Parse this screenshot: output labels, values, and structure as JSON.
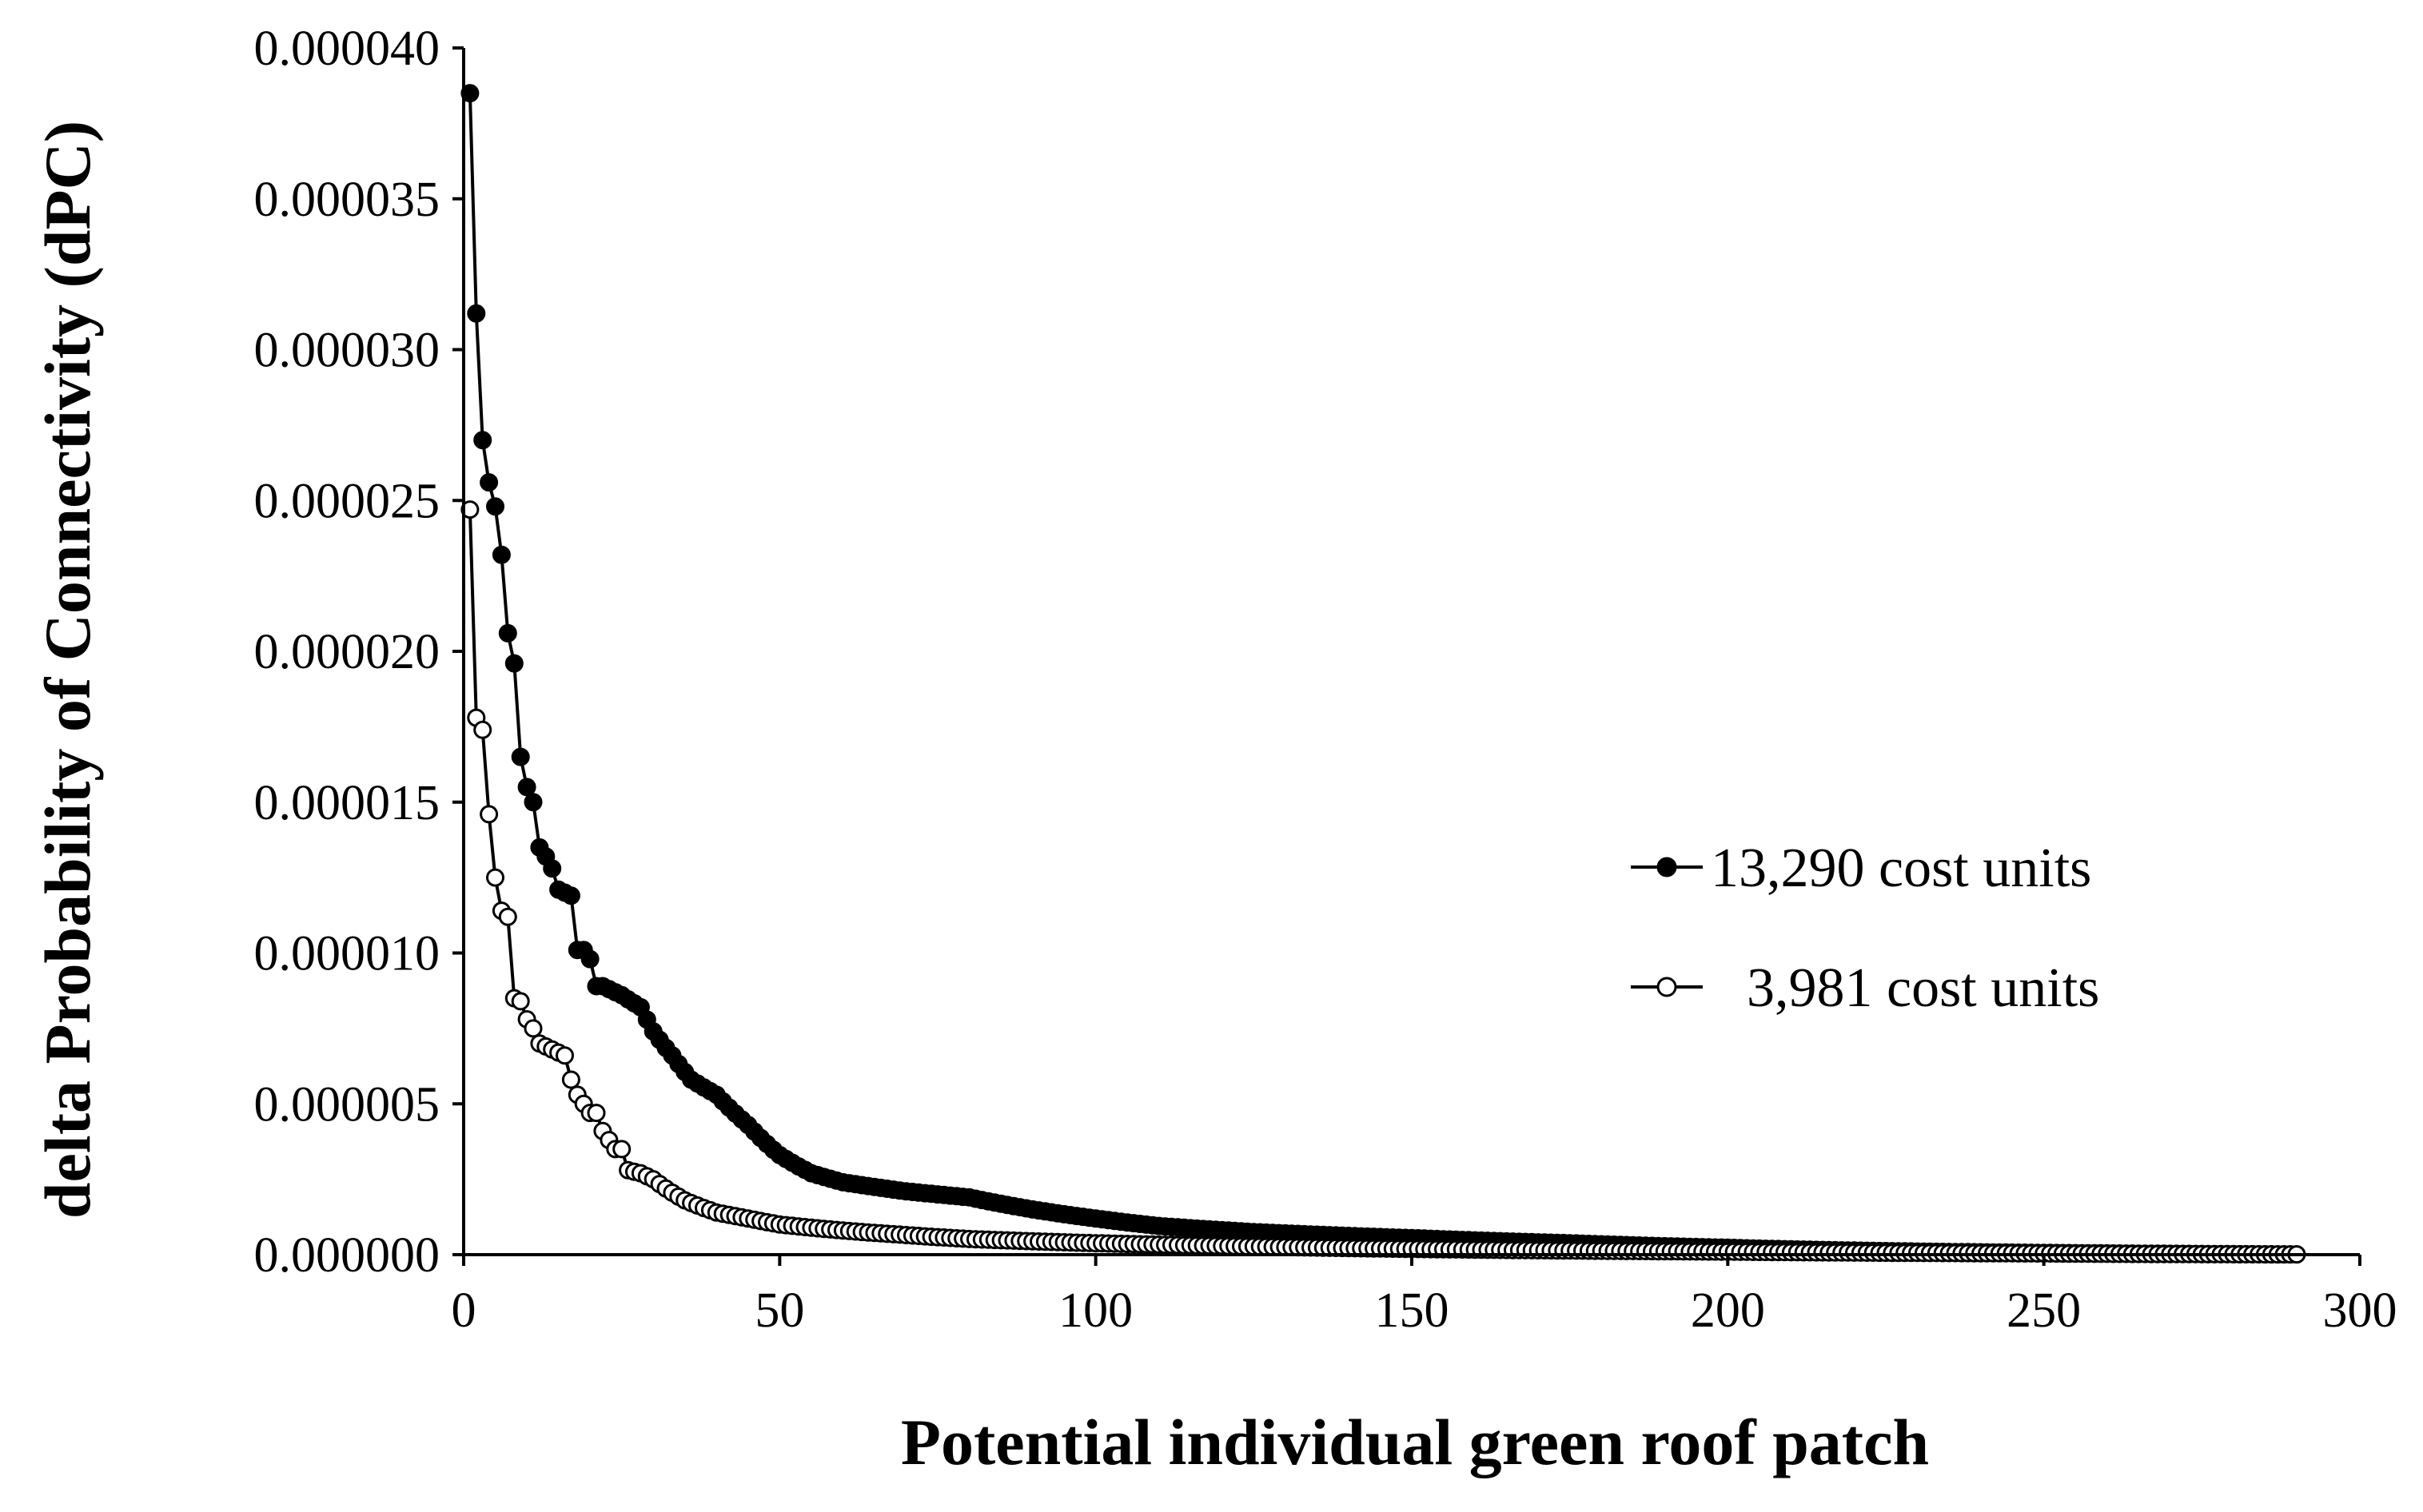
{
  "chart_data": {
    "type": "line",
    "title": "",
    "xlabel": "Potential individual green roof patch",
    "ylabel": "delta Probability of Connectivity (dPC)",
    "xlim": [
      0,
      300
    ],
    "ylim": [
      0,
      4e-05
    ],
    "x_ticks": [
      "0",
      "50",
      "100",
      "150",
      "200",
      "250",
      "300"
    ],
    "y_ticks": [
      "0.000000",
      "0.000005",
      "0.000010",
      "0.000015",
      "0.000020",
      "0.000025",
      "0.000030",
      "0.000035",
      "0.000040"
    ],
    "grid": false,
    "legend_position": "right",
    "n_points": 290,
    "series": [
      {
        "name": "13,290 cost units",
        "marker": "filled-circle",
        "color": "#000000",
        "anchors": [
          [
            1,
            3.85e-05
          ],
          [
            2,
            3.12e-05
          ],
          [
            3,
            2.7e-05
          ],
          [
            4,
            2.56e-05
          ],
          [
            5,
            2.48e-05
          ],
          [
            6,
            2.32e-05
          ],
          [
            7,
            2.06e-05
          ],
          [
            8,
            1.96e-05
          ],
          [
            9,
            1.65e-05
          ],
          [
            10,
            1.55e-05
          ],
          [
            11,
            1.5e-05
          ],
          [
            12,
            1.35e-05
          ],
          [
            13,
            1.32e-05
          ],
          [
            14,
            1.28e-05
          ],
          [
            15,
            1.21e-05
          ],
          [
            16,
            1.2e-05
          ],
          [
            17,
            1.19e-05
          ],
          [
            18,
            1.01e-05
          ],
          [
            19,
            1.01e-05
          ],
          [
            20,
            9.8e-06
          ],
          [
            21,
            8.9e-06
          ],
          [
            22,
            8.9e-06
          ],
          [
            25,
            8.6e-06
          ],
          [
            28,
            8.2e-06
          ],
          [
            30,
            7.4e-06
          ],
          [
            33,
            6.6e-06
          ],
          [
            36,
            5.8e-06
          ],
          [
            40,
            5.3e-06
          ],
          [
            45,
            4.3e-06
          ],
          [
            50,
            3.3e-06
          ],
          [
            55,
            2.7e-06
          ],
          [
            60,
            2.4e-06
          ],
          [
            70,
            2.1e-06
          ],
          [
            80,
            1.9e-06
          ],
          [
            90,
            1.5e-06
          ],
          [
            100,
            1.2e-06
          ],
          [
            110,
            9.5e-07
          ],
          [
            125,
            7.5e-07
          ],
          [
            150,
            5.5e-07
          ],
          [
            175,
            3.8e-07
          ],
          [
            200,
            2.3e-07
          ],
          [
            225,
            1.2e-07
          ],
          [
            250,
            6e-08
          ],
          [
            270,
            3e-08
          ],
          [
            290,
            1e-08
          ]
        ]
      },
      {
        "name": "3,981 cost units",
        "marker": "open-circle",
        "color": "#000000",
        "anchors": [
          [
            1,
            2.47e-05
          ],
          [
            2,
            1.78e-05
          ],
          [
            3,
            1.74e-05
          ],
          [
            4,
            1.46e-05
          ],
          [
            5,
            1.25e-05
          ],
          [
            6,
            1.14e-05
          ],
          [
            7,
            1.12e-05
          ],
          [
            8,
            8.5e-06
          ],
          [
            9,
            8.4e-06
          ],
          [
            10,
            7.8e-06
          ],
          [
            11,
            7.5e-06
          ],
          [
            12,
            7e-06
          ],
          [
            13,
            6.9e-06
          ],
          [
            14,
            6.8e-06
          ],
          [
            15,
            6.7e-06
          ],
          [
            16,
            6.6e-06
          ],
          [
            17,
            5.8e-06
          ],
          [
            18,
            5.3e-06
          ],
          [
            19,
            5e-06
          ],
          [
            20,
            4.7e-06
          ],
          [
            21,
            4.7e-06
          ],
          [
            22,
            4.1e-06
          ],
          [
            23,
            3.8e-06
          ],
          [
            24,
            3.5e-06
          ],
          [
            25,
            3.5e-06
          ],
          [
            26,
            2.8e-06
          ],
          [
            28,
            2.7e-06
          ],
          [
            30,
            2.5e-06
          ],
          [
            35,
            1.8e-06
          ],
          [
            40,
            1.4e-06
          ],
          [
            45,
            1.2e-06
          ],
          [
            50,
            1e-06
          ],
          [
            60,
            8e-07
          ],
          [
            70,
            6.5e-07
          ],
          [
            80,
            5.2e-07
          ],
          [
            100,
            3.8e-07
          ],
          [
            125,
            2.7e-07
          ],
          [
            150,
            1.9e-07
          ],
          [
            200,
            1e-07
          ],
          [
            250,
            4e-08
          ],
          [
            290,
            1e-08
          ]
        ]
      }
    ]
  }
}
